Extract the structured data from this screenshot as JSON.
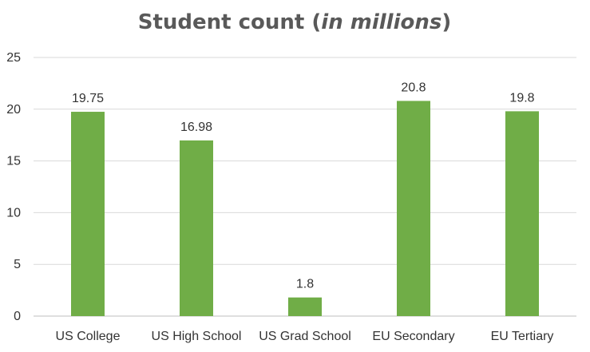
{
  "chart_data": {
    "type": "bar",
    "title": "Student count (",
    "title_italic": "in millions",
    "title_suffix": ")",
    "xlabel": "",
    "ylabel": "",
    "categories": [
      "US College",
      "US High School",
      "US Grad School",
      "EU Secondary",
      "EU Tertiary"
    ],
    "values": [
      19.75,
      16.98,
      1.8,
      20.8,
      19.8
    ],
    "data_labels": [
      "19.75",
      "16.98",
      "1.8",
      "20.8",
      "19.8"
    ],
    "ylim": [
      0,
      25
    ],
    "yticks": [
      0,
      5,
      10,
      15,
      20,
      25
    ],
    "grid": true,
    "legend": "none",
    "bar_color": "#70AD47"
  }
}
